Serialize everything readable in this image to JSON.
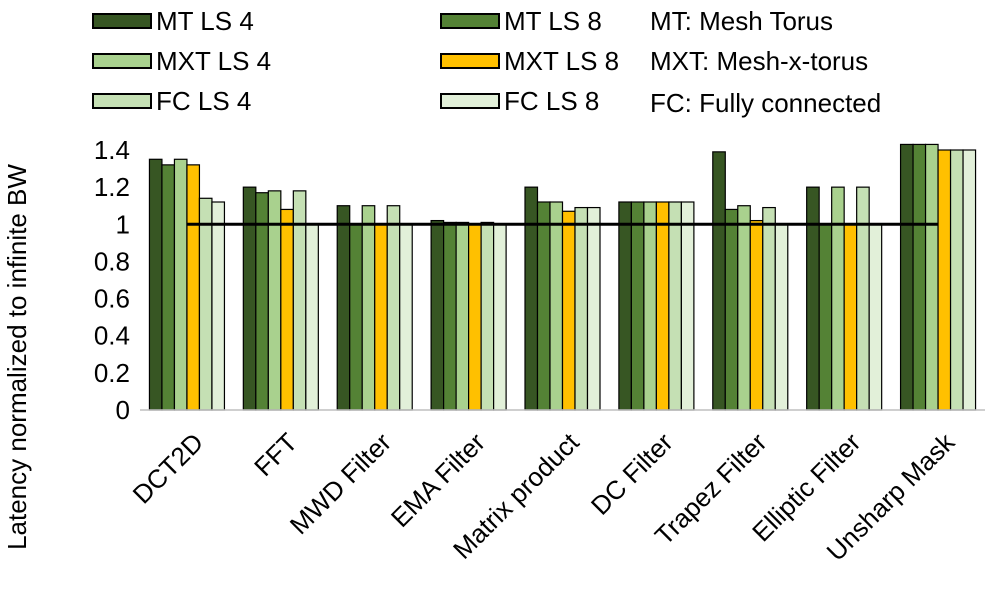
{
  "chart_data": {
    "type": "bar",
    "title": "",
    "xlabel": "",
    "ylabel": "Latency normalized to infinite BW",
    "ylim": [
      0,
      1.4
    ],
    "yticks": [
      "0",
      "0.2",
      "0.4",
      "0.6",
      "0.8",
      "1",
      "1.2",
      "1.4"
    ],
    "grid": false,
    "legend_position": "top",
    "reference_line": 1.0,
    "categories": [
      "DCT2D",
      "FFT",
      "MWD Filter",
      "EMA Filter",
      "Matrix product",
      "DC Filter",
      "Trapez Filter",
      "Elliptic Filter",
      "Unsharp Mask"
    ],
    "series": [
      {
        "name": "MT LS 4",
        "color": "#375623",
        "values": [
          1.35,
          1.2,
          1.1,
          1.02,
          1.2,
          1.12,
          1.39,
          1.2,
          1.43
        ]
      },
      {
        "name": "MT LS 8",
        "color": "#548235",
        "values": [
          1.32,
          1.17,
          1.0,
          1.01,
          1.12,
          1.12,
          1.08,
          1.0,
          1.43
        ]
      },
      {
        "name": "MXT LS 4",
        "color": "#a9d18e",
        "values": [
          1.35,
          1.18,
          1.1,
          1.01,
          1.12,
          1.12,
          1.1,
          1.2,
          1.43
        ]
      },
      {
        "name": "MXT LS 8",
        "color": "#ffc000",
        "values": [
          1.32,
          1.08,
          1.0,
          1.0,
          1.07,
          1.12,
          1.02,
          1.0,
          1.4
        ]
      },
      {
        "name": "FC LS 4",
        "color": "#c5e0b4",
        "values": [
          1.14,
          1.18,
          1.1,
          1.01,
          1.09,
          1.12,
          1.09,
          1.2,
          1.4
        ]
      },
      {
        "name": "FC LS 8",
        "color": "#e2f0d9",
        "values": [
          1.12,
          1.0,
          1.0,
          1.0,
          1.09,
          1.12,
          1.0,
          1.0,
          1.4
        ]
      }
    ]
  },
  "notes": [
    "MT: Mesh Torus",
    "MXT: Mesh-x-torus",
    "FC: Fully connected"
  ]
}
